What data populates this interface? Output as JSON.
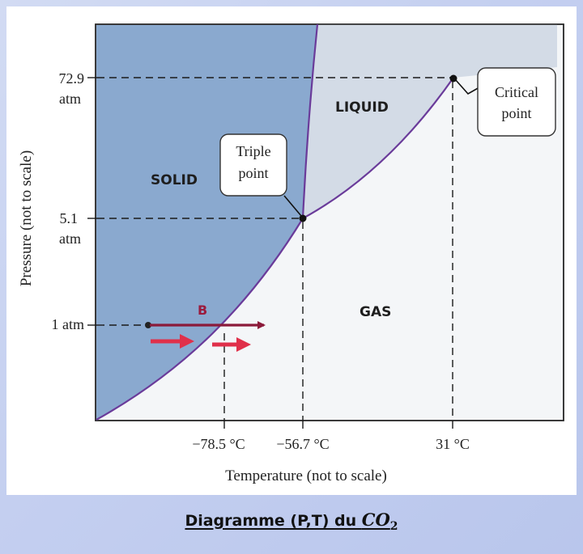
{
  "diagram": {
    "y_axis_label": "Pressure (not to scale)",
    "x_axis_label": "Temperature (not to scale)",
    "y_ticks": {
      "p_critical_value": "72.9",
      "p_critical_unit": "atm",
      "p_triple_value": "5.1",
      "p_triple_unit": "atm",
      "p_one": "1 atm"
    },
    "x_ticks": {
      "t_sublimation": "−78.5 °C",
      "t_triple": "−56.7 °C",
      "t_critical": "31 °C"
    },
    "regions": {
      "solid": "SOLID",
      "liquid": "LIQUID",
      "gas": "GAS"
    },
    "callouts": {
      "triple_line1": "Triple",
      "triple_line2": "point",
      "critical_line1": "Critical",
      "critical_line2": "point"
    },
    "path_label": "B",
    "colors": {
      "solid_fill": "#8aa9cf",
      "liquid_fill": "#d3dbe6",
      "gas_fill": "#f4f6f8",
      "phase_curve": "#6a3b9a",
      "path_arrow": "#8b1a3a",
      "red_arrows": "#e0304a"
    }
  },
  "caption": {
    "text": "Diagramme (P,T) du ",
    "formula": "CO",
    "subscript": "2"
  }
}
